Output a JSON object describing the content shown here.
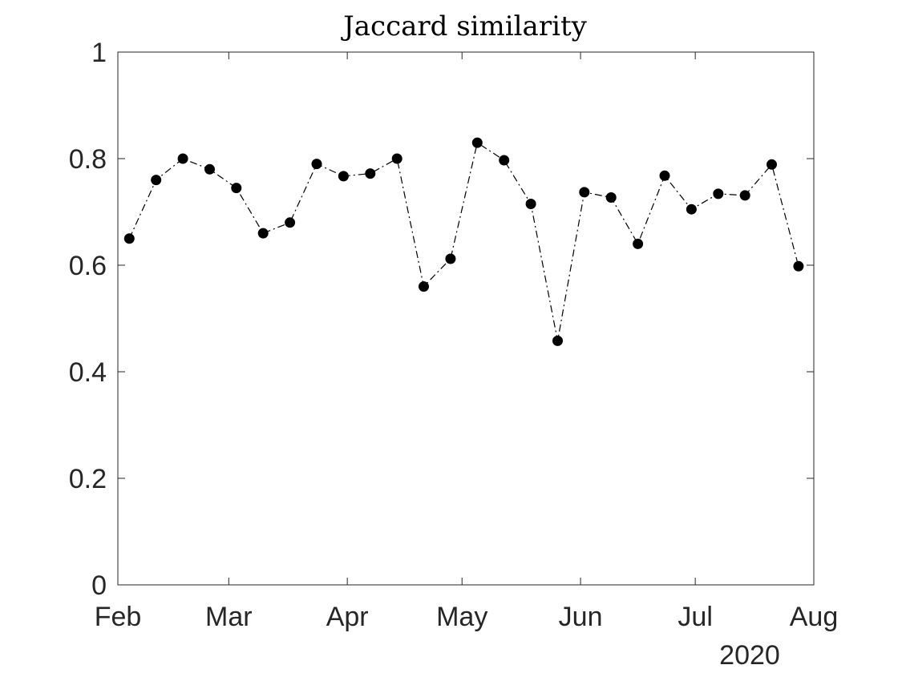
{
  "chart_data": {
    "type": "line",
    "title": "Jaccard similarity",
    "xlabel": "",
    "ylabel": "",
    "x_tick_labels": [
      "Feb",
      "Mar",
      "Apr",
      "May",
      "Jun",
      "Jul",
      "Aug"
    ],
    "x_secondary_label": "2020",
    "y_tick_labels": [
      "0",
      "0.2",
      "0.4",
      "0.6",
      "0.8",
      "1"
    ],
    "ylim": [
      0,
      1
    ],
    "xlim": [
      "2020-02-01",
      "2020-08-01"
    ],
    "grid": false,
    "legend": "none",
    "series": [
      {
        "color": "#000000",
        "line_style": "dash-dot",
        "marker": "filled-circle",
        "points": [
          {
            "x": "2020-02-04",
            "y": 0.65
          },
          {
            "x": "2020-02-11",
            "y": 0.76
          },
          {
            "x": "2020-02-18",
            "y": 0.8
          },
          {
            "x": "2020-02-25",
            "y": 0.78
          },
          {
            "x": "2020-03-03",
            "y": 0.745
          },
          {
            "x": "2020-03-10",
            "y": 0.66
          },
          {
            "x": "2020-03-17",
            "y": 0.68
          },
          {
            "x": "2020-03-24",
            "y": 0.79
          },
          {
            "x": "2020-03-31",
            "y": 0.767
          },
          {
            "x": "2020-04-07",
            "y": 0.772
          },
          {
            "x": "2020-04-14",
            "y": 0.8
          },
          {
            "x": "2020-04-21",
            "y": 0.56
          },
          {
            "x": "2020-04-28",
            "y": 0.612
          },
          {
            "x": "2020-05-05",
            "y": 0.83
          },
          {
            "x": "2020-05-12",
            "y": 0.797
          },
          {
            "x": "2020-05-19",
            "y": 0.715
          },
          {
            "x": "2020-05-26",
            "y": 0.458
          },
          {
            "x": "2020-06-02",
            "y": 0.737
          },
          {
            "x": "2020-06-09",
            "y": 0.727
          },
          {
            "x": "2020-06-16",
            "y": 0.64
          },
          {
            "x": "2020-06-23",
            "y": 0.768
          },
          {
            "x": "2020-06-30",
            "y": 0.705
          },
          {
            "x": "2020-07-07",
            "y": 0.734
          },
          {
            "x": "2020-07-14",
            "y": 0.731
          },
          {
            "x": "2020-07-21",
            "y": 0.789
          },
          {
            "x": "2020-07-28",
            "y": 0.598
          }
        ]
      }
    ]
  }
}
